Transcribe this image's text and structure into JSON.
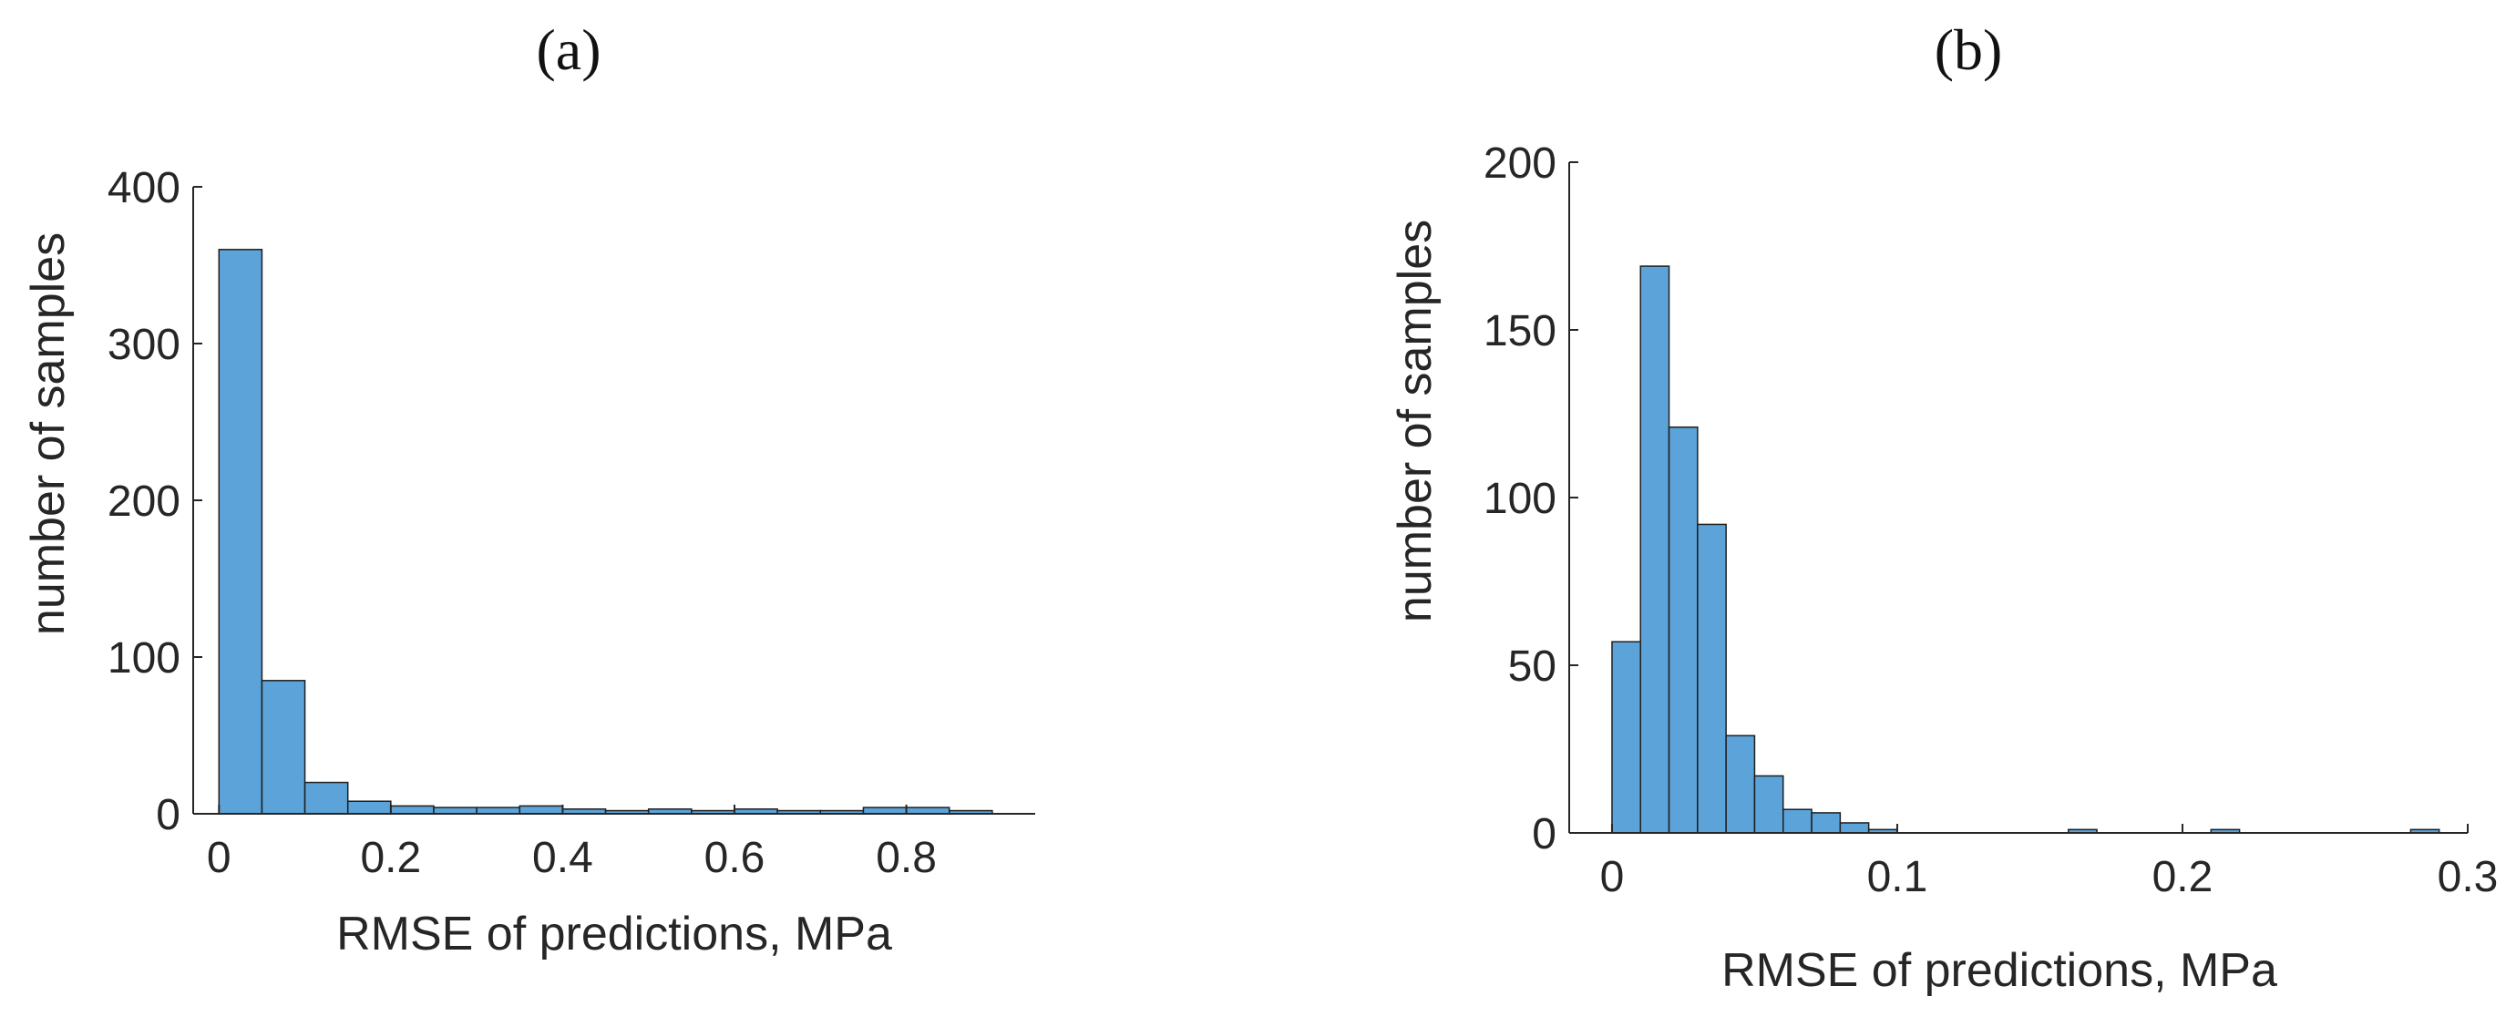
{
  "chart_data": [
    {
      "type": "bar",
      "panel_label": "(a)",
      "title": "",
      "xlabel": "RMSE of predictions, MPa",
      "ylabel": "number of samples",
      "xlim": [
        -0.03,
        0.95
      ],
      "ylim": [
        0,
        400
      ],
      "xticks": [
        0,
        0.2,
        0.4,
        0.6,
        0.8
      ],
      "xtick_labels": [
        "0",
        "0.2",
        "0.4",
        "0.6",
        "0.8"
      ],
      "yticks": [
        0,
        100,
        200,
        300,
        400
      ],
      "ytick_labels": [
        "0",
        "100",
        "200",
        "300",
        "400"
      ],
      "bin_width": 0.05,
      "bin_starts": [
        0,
        0.05,
        0.1,
        0.15,
        0.2,
        0.25,
        0.3,
        0.35,
        0.4,
        0.45,
        0.5,
        0.55,
        0.6,
        0.65,
        0.7,
        0.75,
        0.8,
        0.85
      ],
      "values": [
        360,
        85,
        20,
        8,
        5,
        4,
        4,
        5,
        3,
        2,
        3,
        2,
        3,
        2,
        2,
        4,
        4,
        2
      ],
      "grid": false,
      "bar_color": "#5ba3d9"
    },
    {
      "type": "bar",
      "panel_label": "(b)",
      "title": "",
      "xlabel": "RMSE of predictions, MPa",
      "ylabel": "number of samples",
      "xlim": [
        -0.015,
        0.3
      ],
      "ylim": [
        0,
        200
      ],
      "xticks": [
        0,
        0.1,
        0.2,
        0.3
      ],
      "xtick_labels": [
        "0",
        "0.1",
        "0.2",
        "0.3"
      ],
      "yticks": [
        0,
        50,
        100,
        150,
        200
      ],
      "ytick_labels": [
        "0",
        "50",
        "100",
        "150",
        "200"
      ],
      "bin_width": 0.01,
      "bin_starts": [
        0,
        0.01,
        0.02,
        0.03,
        0.04,
        0.05,
        0.06,
        0.07,
        0.08,
        0.09,
        0.1,
        0.11,
        0.12,
        0.13,
        0.14,
        0.15,
        0.16,
        0.17,
        0.18,
        0.19,
        0.2,
        0.21,
        0.22,
        0.23,
        0.24,
        0.25,
        0.26,
        0.27,
        0.28
      ],
      "values": [
        57,
        169,
        121,
        92,
        29,
        17,
        7,
        6,
        3,
        1,
        0,
        0,
        0,
        0,
        0,
        0,
        1,
        0,
        0,
        0,
        0,
        1,
        0,
        0,
        0,
        0,
        0,
        0,
        1
      ],
      "grid": false,
      "bar_color": "#5ba3d9"
    }
  ]
}
